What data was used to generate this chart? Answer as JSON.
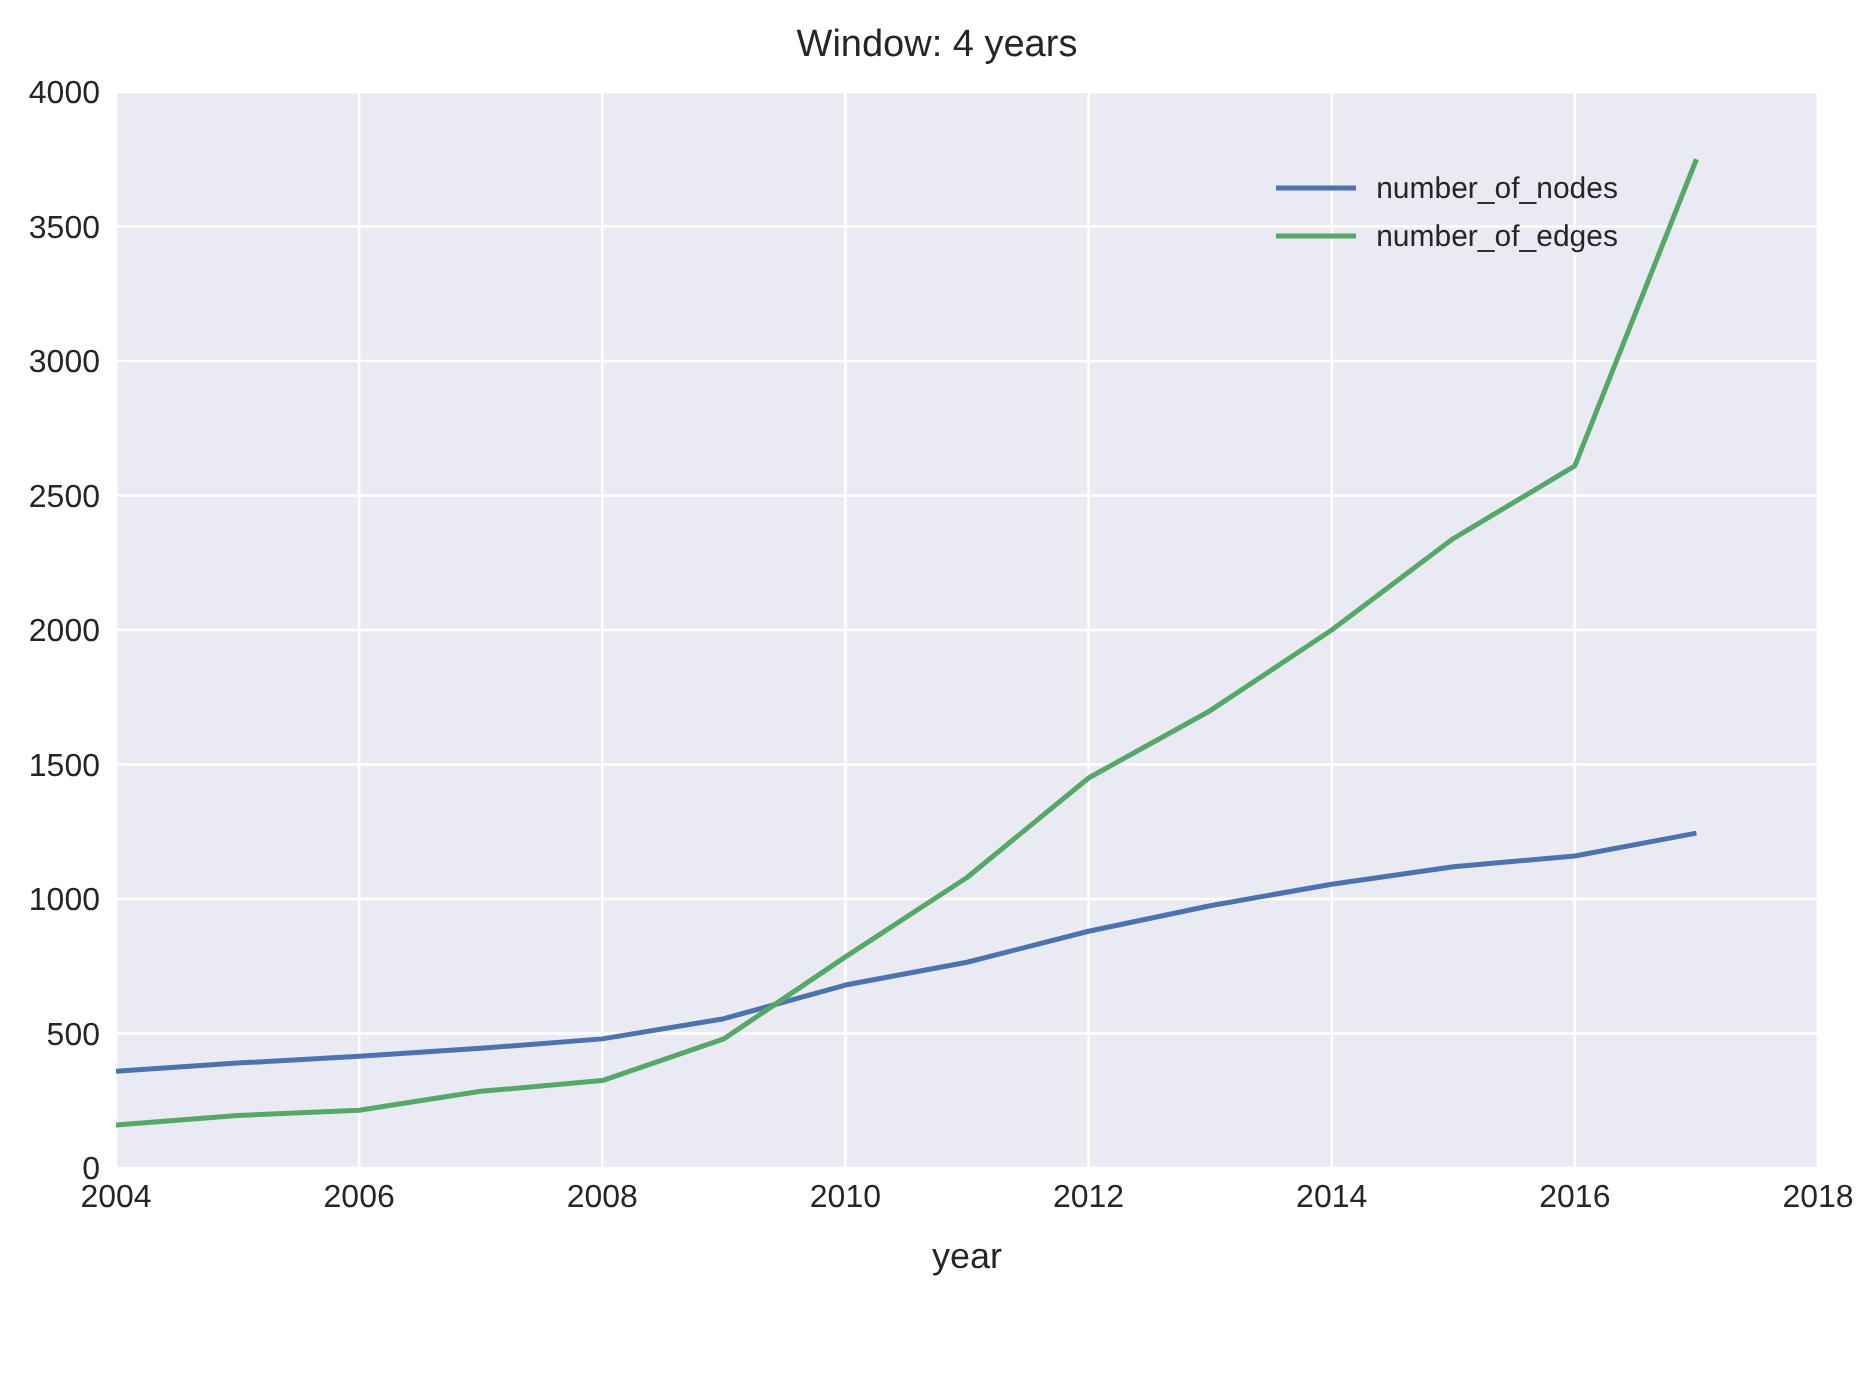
{
  "chart_data": {
    "type": "line",
    "title": "Window: 4 years",
    "xlabel": "year",
    "x": [
      2004,
      2005,
      2006,
      2007,
      2008,
      2009,
      2010,
      2011,
      2012,
      2013,
      2014,
      2015,
      2016,
      2017
    ],
    "series": [
      {
        "name": "number_of_nodes",
        "color": "#4c72b0",
        "values": [
          360,
          390,
          415,
          445,
          480,
          555,
          680,
          765,
          880,
          975,
          1055,
          1120,
          1160,
          1245
        ]
      },
      {
        "name": "number_of_edges",
        "color": "#55a868",
        "values": [
          160,
          195,
          215,
          285,
          325,
          480,
          785,
          1080,
          1450,
          1700,
          2000,
          2340,
          2610,
          3750
        ]
      }
    ],
    "xlim": [
      2004,
      2018
    ],
    "xticks": [
      2004,
      2006,
      2008,
      2010,
      2012,
      2014,
      2016,
      2018
    ],
    "ylim": [
      0,
      4000
    ],
    "yticks": [
      0,
      500,
      1000,
      1500,
      2000,
      2500,
      3000,
      3500,
      4000
    ],
    "grid": true,
    "legend": "top right",
    "marker": "none",
    "line_style": "solid"
  }
}
